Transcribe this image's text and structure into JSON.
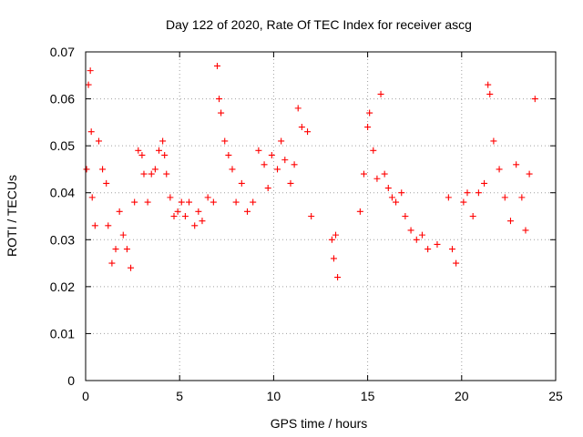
{
  "chart_data": {
    "type": "scatter",
    "title": "Day 122 of 2020, Rate Of TEC Index for receiver ascg",
    "xlabel": "GPS time / hours",
    "ylabel": "ROTI / TECUs",
    "xlim": [
      0,
      25
    ],
    "ylim": [
      0,
      0.07
    ],
    "x_ticks": [
      "0",
      "5",
      "10",
      "15",
      "20",
      "25"
    ],
    "y_ticks": [
      "0",
      "0.01",
      "0.02",
      "0.03",
      "0.04",
      "0.05",
      "0.06",
      "0.07"
    ],
    "grid": true,
    "marker": "+",
    "color": "#ff0000",
    "series": [
      {
        "x": [
          0.05,
          0.15,
          0.25,
          0.3,
          0.35,
          0.5,
          0.7,
          0.9,
          1.1,
          1.2,
          1.4,
          1.6,
          1.8,
          2.0,
          2.2,
          2.4,
          2.6,
          2.8,
          3.0,
          3.1,
          3.3,
          3.5,
          3.7,
          3.9,
          4.1,
          4.2,
          4.3,
          4.5,
          4.7,
          4.9,
          5.1,
          5.3,
          5.5,
          5.8,
          6.0,
          6.2,
          6.5,
          6.8,
          7.0,
          7.1,
          7.2,
          7.4,
          7.6,
          7.8,
          8.0,
          8.3,
          8.6,
          8.9,
          9.2,
          9.5,
          9.7,
          9.9,
          10.2,
          10.4,
          10.6,
          10.9,
          11.1,
          11.3,
          11.5,
          11.8,
          12.0,
          13.1,
          13.2,
          13.3,
          13.4,
          14.6,
          14.8,
          15.0,
          15.1,
          15.3,
          15.5,
          15.7,
          15.9,
          16.1,
          16.3,
          16.5,
          16.8,
          17.0,
          17.3,
          17.6,
          17.9,
          18.2,
          18.7,
          19.3,
          19.5,
          19.7,
          20.1,
          20.3,
          20.6,
          20.9,
          21.2,
          21.4,
          21.5,
          21.7,
          22.0,
          22.3,
          22.6,
          22.9,
          23.2,
          23.4,
          23.6,
          23.9
        ],
        "y": [
          0.045,
          0.063,
          0.066,
          0.053,
          0.039,
          0.033,
          0.051,
          0.045,
          0.042,
          0.033,
          0.025,
          0.028,
          0.036,
          0.031,
          0.028,
          0.024,
          0.038,
          0.049,
          0.048,
          0.044,
          0.038,
          0.044,
          0.045,
          0.049,
          0.051,
          0.048,
          0.044,
          0.039,
          0.035,
          0.036,
          0.038,
          0.035,
          0.038,
          0.033,
          0.036,
          0.034,
          0.039,
          0.038,
          0.067,
          0.06,
          0.057,
          0.051,
          0.048,
          0.045,
          0.038,
          0.042,
          0.036,
          0.038,
          0.049,
          0.046,
          0.041,
          0.048,
          0.045,
          0.051,
          0.047,
          0.042,
          0.046,
          0.058,
          0.054,
          0.053,
          0.035,
          0.03,
          0.026,
          0.031,
          0.022,
          0.036,
          0.044,
          0.054,
          0.057,
          0.049,
          0.043,
          0.061,
          0.044,
          0.041,
          0.039,
          0.038,
          0.04,
          0.035,
          0.032,
          0.03,
          0.031,
          0.028,
          0.029,
          0.039,
          0.028,
          0.025,
          0.038,
          0.04,
          0.035,
          0.04,
          0.042,
          0.063,
          0.061,
          0.051,
          0.045,
          0.039,
          0.034,
          0.046,
          0.039,
          0.032,
          0.044,
          0.06
        ]
      }
    ]
  }
}
